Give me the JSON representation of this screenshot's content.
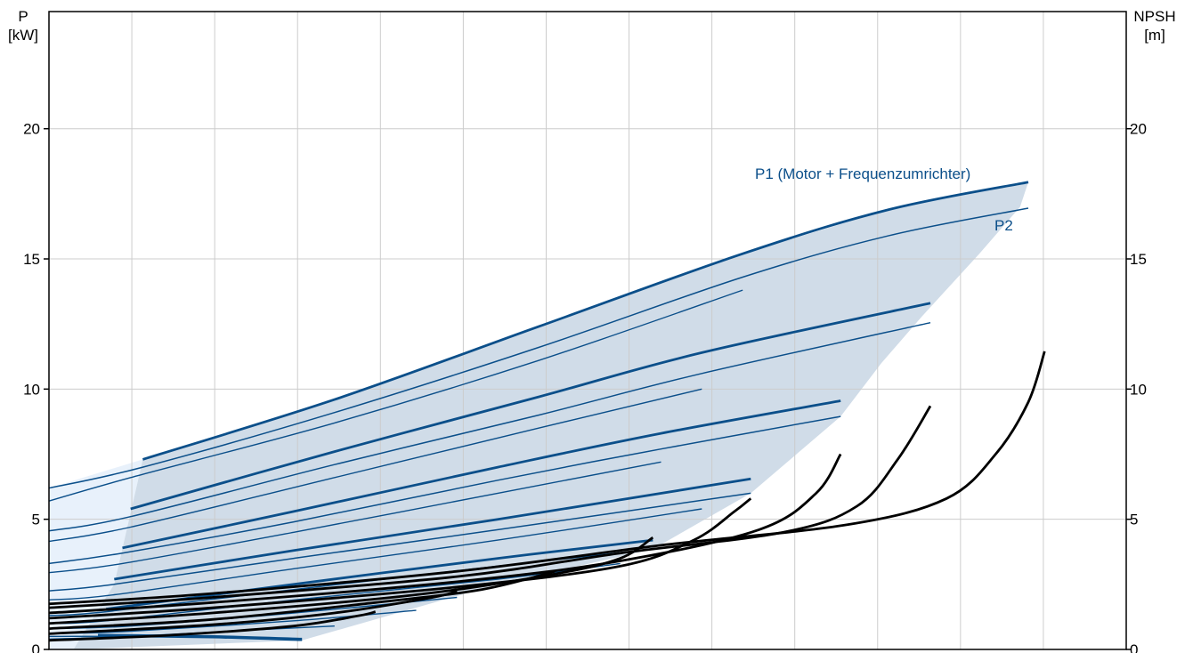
{
  "chart_data": {
    "type": "line",
    "left_axis": {
      "title_line1": "P",
      "title_line2": "[kW]",
      "ticks": [
        0,
        5,
        10,
        15,
        20
      ],
      "ylim": [
        0,
        24.5
      ]
    },
    "right_axis": {
      "title_line1": "NPSH",
      "title_line2": "[m]",
      "ticks": [
        0,
        5,
        10,
        15,
        20
      ],
      "ylim": [
        0,
        24.5
      ]
    },
    "xlim": [
      0,
      13.2
    ],
    "x_ticks_labeled": false,
    "grid": true,
    "colors": {
      "p1": "#0b4f8a",
      "p2": "#0b4f8a",
      "npsh": "#000000",
      "band": "#d0dce8",
      "band_light": "#e8f1fb",
      "grid": "#cccccc"
    },
    "labels": {
      "p1": "P1 (Motor + Frequenzumrichter)",
      "p2": "P2"
    },
    "p1_curves": [
      {
        "points": [
          [
            1.15,
            7.3
          ],
          [
            3.5,
            9.6
          ],
          [
            6.0,
            12.4
          ],
          [
            8.5,
            15.2
          ],
          [
            10.3,
            16.9
          ],
          [
            12.0,
            17.95
          ]
        ]
      },
      {
        "points": [
          [
            1.0,
            5.4
          ],
          [
            3.5,
            7.6
          ],
          [
            6.0,
            9.7
          ],
          [
            8.0,
            11.4
          ],
          [
            10.8,
            13.3
          ]
        ]
      },
      {
        "points": [
          [
            0.9,
            3.9
          ],
          [
            3.0,
            5.3
          ],
          [
            5.5,
            7.0
          ],
          [
            7.5,
            8.3
          ],
          [
            9.7,
            9.55
          ]
        ]
      },
      {
        "points": [
          [
            0.8,
            2.7
          ],
          [
            3.0,
            3.8
          ],
          [
            5.5,
            5.0
          ],
          [
            8.6,
            6.55
          ]
        ]
      },
      {
        "points": [
          [
            0.7,
            1.55
          ],
          [
            3.0,
            2.5
          ],
          [
            5.5,
            3.5
          ],
          [
            7.4,
            4.2
          ]
        ]
      },
      {
        "points": [
          [
            0.6,
            0.55
          ],
          [
            2.0,
            0.5
          ],
          [
            3.1,
            0.4
          ]
        ]
      }
    ],
    "p2_curves": [
      {
        "points": [
          [
            0.0,
            6.2
          ],
          [
            1.15,
            7.0
          ],
          [
            3.5,
            9.1
          ],
          [
            6.0,
            11.6
          ],
          [
            8.5,
            14.3
          ],
          [
            10.3,
            15.9
          ],
          [
            12.0,
            16.95
          ]
        ]
      },
      {
        "points": [
          [
            0.0,
            4.55
          ],
          [
            1.0,
            5.1
          ],
          [
            3.5,
            7.1
          ],
          [
            6.0,
            9.0
          ],
          [
            8.0,
            10.6
          ],
          [
            10.8,
            12.55
          ]
        ]
      },
      {
        "points": [
          [
            0.0,
            3.3
          ],
          [
            0.9,
            3.7
          ],
          [
            3.0,
            4.9
          ],
          [
            5.5,
            6.5
          ],
          [
            7.5,
            7.7
          ],
          [
            9.7,
            8.95
          ]
        ]
      },
      {
        "points": [
          [
            0.0,
            2.25
          ],
          [
            0.8,
            2.5
          ],
          [
            3.0,
            3.5
          ],
          [
            5.5,
            4.6
          ],
          [
            8.6,
            6.0
          ]
        ]
      },
      {
        "points": [
          [
            0.0,
            1.3
          ],
          [
            0.7,
            1.45
          ],
          [
            3.0,
            2.3
          ],
          [
            5.5,
            3.2
          ],
          [
            7.4,
            3.85
          ]
        ]
      },
      {
        "points": [
          [
            0.0,
            0.5
          ],
          [
            0.6,
            0.5
          ],
          [
            2.0,
            0.45
          ],
          [
            3.1,
            0.35
          ]
        ]
      }
    ],
    "p_extra_curves": [
      {
        "points": [
          [
            0.0,
            5.7
          ],
          [
            1.0,
            6.6
          ],
          [
            3.5,
            8.7
          ],
          [
            6.0,
            11.1
          ],
          [
            8.5,
            13.8
          ]
        ]
      },
      {
        "points": [
          [
            0.0,
            4.15
          ],
          [
            1.0,
            4.7
          ],
          [
            3.5,
            6.6
          ],
          [
            6.0,
            8.5
          ],
          [
            8.0,
            10.0
          ]
        ]
      },
      {
        "points": [
          [
            0.0,
            2.95
          ],
          [
            0.9,
            3.3
          ],
          [
            3.0,
            4.5
          ],
          [
            5.5,
            6.0
          ],
          [
            7.5,
            7.2
          ]
        ]
      },
      {
        "points": [
          [
            0.0,
            1.9
          ],
          [
            0.8,
            2.1
          ],
          [
            3.0,
            3.1
          ],
          [
            5.5,
            4.2
          ],
          [
            8.0,
            5.4
          ]
        ]
      },
      {
        "points": [
          [
            0.0,
            1.0
          ],
          [
            0.7,
            1.1
          ],
          [
            3.0,
            1.9
          ],
          [
            5.5,
            2.7
          ],
          [
            7.0,
            3.3
          ]
        ]
      },
      {
        "points": [
          [
            0.0,
            0.8
          ],
          [
            1.0,
            0.9
          ],
          [
            3.0,
            1.4
          ],
          [
            5.0,
            2.0
          ]
        ]
      },
      {
        "points": [
          [
            0.0,
            0.6
          ],
          [
            1.0,
            0.7
          ],
          [
            3.0,
            1.1
          ],
          [
            4.5,
            1.5
          ]
        ]
      },
      {
        "points": [
          [
            0.0,
            0.4
          ],
          [
            1.0,
            0.5
          ],
          [
            2.5,
            0.75
          ],
          [
            3.5,
            0.9
          ]
        ]
      }
    ],
    "npsh_curves": [
      {
        "points": [
          [
            0.0,
            1.75
          ],
          [
            2.0,
            2.15
          ],
          [
            5.0,
            3.0
          ],
          [
            7.5,
            4.0
          ],
          [
            9.8,
            4.8
          ],
          [
            11.0,
            5.8
          ],
          [
            11.6,
            7.5
          ],
          [
            12.0,
            9.5
          ],
          [
            12.2,
            11.45
          ]
        ]
      },
      {
        "points": [
          [
            0.0,
            1.6
          ],
          [
            2.0,
            2.0
          ],
          [
            5.0,
            2.8
          ],
          [
            7.0,
            3.7
          ],
          [
            9.0,
            4.5
          ],
          [
            9.9,
            5.5
          ],
          [
            10.4,
            7.3
          ],
          [
            10.8,
            9.35
          ]
        ]
      },
      {
        "points": [
          [
            0.0,
            1.4
          ],
          [
            2.0,
            1.8
          ],
          [
            5.0,
            2.6
          ],
          [
            7.0,
            3.4
          ],
          [
            8.7,
            4.6
          ],
          [
            9.4,
            6.0
          ],
          [
            9.7,
            7.5
          ]
        ]
      },
      {
        "points": [
          [
            0.0,
            1.2
          ],
          [
            2.0,
            1.6
          ],
          [
            5.0,
            2.4
          ],
          [
            7.0,
            3.2
          ],
          [
            7.9,
            4.2
          ],
          [
            8.4,
            5.3
          ],
          [
            8.6,
            5.8
          ]
        ]
      },
      {
        "points": [
          [
            0.0,
            1.0
          ],
          [
            2.0,
            1.4
          ],
          [
            4.5,
            2.1
          ],
          [
            6.2,
            2.9
          ],
          [
            7.0,
            3.5
          ],
          [
            7.4,
            4.3
          ]
        ]
      },
      {
        "points": [
          [
            0.0,
            0.8
          ],
          [
            2.0,
            1.15
          ],
          [
            4.0,
            1.8
          ],
          [
            5.3,
            2.3
          ],
          [
            6.2,
            3.0
          ]
        ]
      },
      {
        "points": [
          [
            0.0,
            0.6
          ],
          [
            2.0,
            0.95
          ],
          [
            3.5,
            1.4
          ],
          [
            4.7,
            2.0
          ],
          [
            5.0,
            2.25
          ]
        ]
      },
      {
        "points": [
          [
            0.0,
            0.35
          ],
          [
            1.5,
            0.55
          ],
          [
            3.0,
            0.9
          ],
          [
            3.8,
            1.3
          ],
          [
            4.0,
            1.45
          ]
        ]
      }
    ],
    "band_outline": [
      [
        1.15,
        7.3
      ],
      [
        3.5,
        9.6
      ],
      [
        6.0,
        12.4
      ],
      [
        8.5,
        15.2
      ],
      [
        10.3,
        16.9
      ],
      [
        12.0,
        17.95
      ],
      [
        11.9,
        17.0
      ],
      [
        11.4,
        15.2
      ],
      [
        10.7,
        12.8
      ],
      [
        10.2,
        11.0
      ],
      [
        9.7,
        8.95
      ],
      [
        8.6,
        6.0
      ],
      [
        7.4,
        3.85
      ],
      [
        5.5,
        2.5
      ],
      [
        3.1,
        0.35
      ],
      [
        0.3,
        0.0
      ],
      [
        0.8,
        2.5
      ],
      [
        1.15,
        7.3
      ]
    ],
    "light_band_outline": [
      [
        0.0,
        6.2
      ],
      [
        1.15,
        7.3
      ],
      [
        0.8,
        2.5
      ],
      [
        0.3,
        0.0
      ],
      [
        0.0,
        0.0
      ]
    ]
  }
}
